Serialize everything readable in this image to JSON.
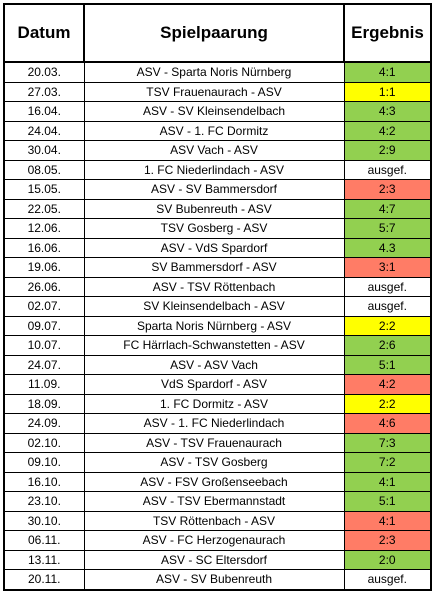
{
  "header": {
    "datum": "Datum",
    "spielpaarung": "Spielpaarung",
    "ergebnis": "Ergebnis"
  },
  "colors": {
    "win": "#92d050",
    "draw": "#ffff00",
    "loss": "#ff7c66",
    "cancelled": "#ffffff"
  },
  "rows": [
    {
      "datum": "20.03.",
      "spiel": "ASV - Sparta Noris Nürnberg",
      "ergebnis": "4:1",
      "status": "win"
    },
    {
      "datum": "27.03.",
      "spiel": "TSV Frauenaurach - ASV",
      "ergebnis": "1:1",
      "status": "draw"
    },
    {
      "datum": "16.04.",
      "spiel": "ASV - SV Kleinsendelbach",
      "ergebnis": "4:3",
      "status": "win"
    },
    {
      "datum": "24.04.",
      "spiel": "ASV - 1. FC Dormitz",
      "ergebnis": "4:2",
      "status": "win"
    },
    {
      "datum": "30.04.",
      "spiel": "ASV Vach - ASV",
      "ergebnis": "2:9",
      "status": "win"
    },
    {
      "datum": "08.05.",
      "spiel": "1. FC Niederlindach - ASV",
      "ergebnis": "ausgef.",
      "status": "cancelled"
    },
    {
      "datum": "15.05.",
      "spiel": "ASV - SV Bammersdorf",
      "ergebnis": "2:3",
      "status": "loss"
    },
    {
      "datum": "22.05.",
      "spiel": "SV Bubenreuth - ASV",
      "ergebnis": "4:7",
      "status": "win"
    },
    {
      "datum": "12.06.",
      "spiel": "TSV Gosberg - ASV",
      "ergebnis": "5:7",
      "status": "win"
    },
    {
      "datum": "16.06.",
      "spiel": "ASV - VdS Spardorf",
      "ergebnis": "4.3",
      "status": "win"
    },
    {
      "datum": "19.06.",
      "spiel": "SV Bammersdorf - ASV",
      "ergebnis": "3:1",
      "status": "loss"
    },
    {
      "datum": "26.06.",
      "spiel": "ASV - TSV Röttenbach",
      "ergebnis": "ausgef.",
      "status": "cancelled"
    },
    {
      "datum": "02.07.",
      "spiel": "SV Kleinsendelbach - ASV",
      "ergebnis": "ausgef.",
      "status": "cancelled"
    },
    {
      "datum": "09.07.",
      "spiel": "Sparta Noris Nürnberg - ASV",
      "ergebnis": "2:2",
      "status": "draw"
    },
    {
      "datum": "10.07.",
      "spiel": "FC Härrlach-Schwanstetten - ASV",
      "ergebnis": "2:6",
      "status": "win"
    },
    {
      "datum": "24.07.",
      "spiel": "ASV - ASV Vach",
      "ergebnis": "5:1",
      "status": "win"
    },
    {
      "datum": "11.09.",
      "spiel": "VdS Spardorf - ASV",
      "ergebnis": "4:2",
      "status": "loss"
    },
    {
      "datum": "18.09.",
      "spiel": "1. FC Dormitz - ASV",
      "ergebnis": "2:2",
      "status": "draw"
    },
    {
      "datum": "24.09.",
      "spiel": "ASV - 1. FC Niederlindach",
      "ergebnis": "4:6",
      "status": "loss"
    },
    {
      "datum": "02.10.",
      "spiel": "ASV - TSV Frauenaurach",
      "ergebnis": "7:3",
      "status": "win"
    },
    {
      "datum": "09.10.",
      "spiel": "ASV - TSV Gosberg",
      "ergebnis": "7:2",
      "status": "win"
    },
    {
      "datum": "16.10.",
      "spiel": "ASV - FSV Großenseebach",
      "ergebnis": "4:1",
      "status": "win"
    },
    {
      "datum": "23.10.",
      "spiel": "ASV - TSV Ebermannstadt",
      "ergebnis": "5:1",
      "status": "win"
    },
    {
      "datum": "30.10.",
      "spiel": "TSV Röttenbach - ASV",
      "ergebnis": "4:1",
      "status": "loss"
    },
    {
      "datum": "06.11.",
      "spiel": "ASV - FC Herzogenaurach",
      "ergebnis": "2:3",
      "status": "loss"
    },
    {
      "datum": "13.11.",
      "spiel": "ASV - SC Eltersdorf",
      "ergebnis": "2:0",
      "status": "win"
    },
    {
      "datum": "20.11.",
      "spiel": "ASV - SV Bubenreuth",
      "ergebnis": "ausgef.",
      "status": "cancelled"
    }
  ]
}
